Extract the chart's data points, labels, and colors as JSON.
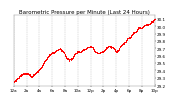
{
  "title": "Barometric Pressure per Minute (Last 24 Hours)",
  "y_min": 29.2,
  "y_max": 30.15,
  "y_ticks": [
    29.2,
    29.3,
    29.4,
    29.5,
    29.6,
    29.7,
    29.8,
    29.9,
    30.0,
    30.1
  ],
  "num_points": 1440,
  "dot_color": "#ff0000",
  "dot_size": 0.5,
  "bg_color": "#ffffff",
  "plot_bg_color": "#ffffff",
  "grid_color": "#bbbbbb",
  "title_fontsize": 4.0,
  "tick_fontsize": 3.0,
  "x_labels": [
    "12a",
    "2a",
    "4a",
    "6a",
    "8a",
    "10a",
    "12p",
    "2p",
    "4p",
    "6p",
    "8p",
    "10p"
  ],
  "x_tick_count": 12,
  "seed": 10
}
